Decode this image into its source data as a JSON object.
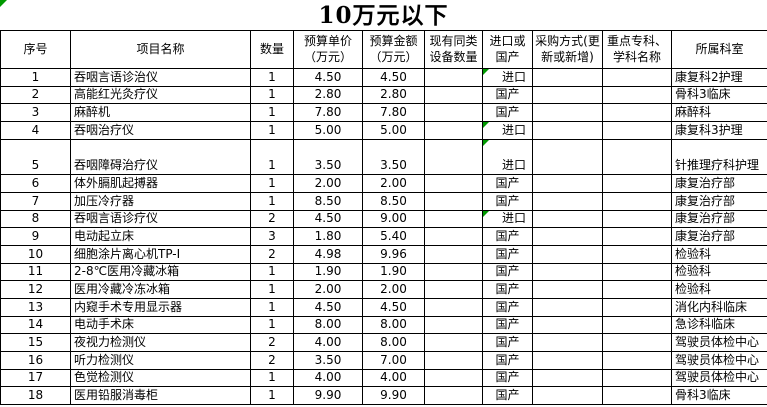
{
  "title": "10万元以下",
  "colors": {
    "grid": "#000000",
    "error_indicator": "#009900",
    "text": "#000000",
    "background": "#ffffff"
  },
  "sheet_corner_error_indicator": true,
  "table": {
    "columns": [
      {
        "key": "index",
        "label": "序号"
      },
      {
        "key": "name",
        "label": "项目名称"
      },
      {
        "key": "qty",
        "label": "数量"
      },
      {
        "key": "unit_price",
        "label": "预算单价\n（万元）"
      },
      {
        "key": "amount",
        "label": "预算金额\n（万元）"
      },
      {
        "key": "existing_count",
        "label": "现有同类\n设备数量"
      },
      {
        "key": "origin",
        "label": "进口或\n国产"
      },
      {
        "key": "method",
        "label": "采购方式(更\n新或新增)"
      },
      {
        "key": "specialty",
        "label": "重点专科、\n学科名称"
      },
      {
        "key": "dept",
        "label": "所属科室"
      }
    ],
    "rows": [
      {
        "index": "1",
        "name": "吞咽言语诊治仪",
        "qty": "1",
        "unit_price": "4.50",
        "amount": "4.50",
        "existing_count": "",
        "origin": "进口",
        "origin_flag": true,
        "method": "",
        "specialty": "",
        "dept": "康复科2护理"
      },
      {
        "index": "2",
        "name": "高能红光灸疗仪",
        "qty": "1",
        "unit_price": "2.80",
        "amount": "2.80",
        "existing_count": "",
        "origin": "国产",
        "origin_flag": false,
        "method": "",
        "specialty": "",
        "dept": "骨科3临床"
      },
      {
        "index": "3",
        "name": "麻醉机",
        "qty": "1",
        "unit_price": "7.80",
        "amount": "7.80",
        "existing_count": "",
        "origin": "国产",
        "origin_flag": false,
        "method": "",
        "specialty": "",
        "dept": "麻醉科"
      },
      {
        "index": "4",
        "name": "吞咽治疗仪",
        "qty": "1",
        "unit_price": "5.00",
        "amount": "5.00",
        "existing_count": "",
        "origin": "进口",
        "origin_flag": true,
        "method": "",
        "specialty": "",
        "dept": "康复科3护理"
      },
      {
        "index": "5",
        "name": "吞咽障碍治疗仪",
        "qty": "1",
        "unit_price": "3.50",
        "amount": "3.50",
        "existing_count": "",
        "origin": "进口",
        "origin_flag": true,
        "method": "",
        "specialty": "",
        "dept": "针推理疗科护理",
        "tall": true
      },
      {
        "index": "6",
        "name": "体外膈肌起搏器",
        "qty": "1",
        "unit_price": "2.00",
        "amount": "2.00",
        "existing_count": "",
        "origin": "国产",
        "origin_flag": false,
        "method": "",
        "specialty": "",
        "dept": "康复治疗部"
      },
      {
        "index": "7",
        "name": "加压冷疗器",
        "qty": "1",
        "unit_price": "8.50",
        "amount": "8.50",
        "existing_count": "",
        "origin": "国产",
        "origin_flag": false,
        "method": "",
        "specialty": "",
        "dept": "康复治疗部"
      },
      {
        "index": "8",
        "name": "吞咽言语诊疗仪",
        "qty": "2",
        "unit_price": "4.50",
        "amount": "9.00",
        "existing_count": "",
        "origin": "进口",
        "origin_flag": true,
        "method": "",
        "specialty": "",
        "dept": "康复治疗部"
      },
      {
        "index": "9",
        "name": "电动起立床",
        "qty": "3",
        "unit_price": "1.80",
        "amount": "5.40",
        "existing_count": "",
        "origin": "国产",
        "origin_flag": false,
        "method": "",
        "specialty": "",
        "dept": "康复治疗部"
      },
      {
        "index": "10",
        "name": "细胞涂片离心机TP-I",
        "qty": "2",
        "unit_price": "4.98",
        "amount": "9.96",
        "existing_count": "",
        "origin": "国产",
        "origin_flag": false,
        "method": "",
        "specialty": "",
        "dept": "检验科"
      },
      {
        "index": "11",
        "name": "2-8℃医用冷藏冰箱",
        "qty": "1",
        "unit_price": "1.90",
        "amount": "1.90",
        "existing_count": "",
        "origin": "国产",
        "origin_flag": false,
        "method": "",
        "specialty": "",
        "dept": "检验科"
      },
      {
        "index": "12",
        "name": "医用冷藏冷冻冰箱",
        "qty": "1",
        "unit_price": "2.00",
        "amount": "2.00",
        "existing_count": "",
        "origin": "国产",
        "origin_flag": false,
        "method": "",
        "specialty": "",
        "dept": "检验科"
      },
      {
        "index": "13",
        "name": "内窥手术专用显示器",
        "qty": "1",
        "unit_price": "4.50",
        "amount": "4.50",
        "existing_count": "",
        "origin": "国产",
        "origin_flag": false,
        "method": "",
        "specialty": "",
        "dept": "消化内科临床"
      },
      {
        "index": "14",
        "name": "电动手术床",
        "qty": "1",
        "unit_price": "8.00",
        "amount": "8.00",
        "existing_count": "",
        "origin": "国产",
        "origin_flag": false,
        "method": "",
        "specialty": "",
        "dept": "急诊科临床"
      },
      {
        "index": "15",
        "name": "夜视力检测仪",
        "qty": "2",
        "unit_price": "4.00",
        "amount": "8.00",
        "existing_count": "",
        "origin": "国产",
        "origin_flag": false,
        "method": "",
        "specialty": "",
        "dept": "驾驶员体检中心"
      },
      {
        "index": "16",
        "name": "听力检测仪",
        "qty": "2",
        "unit_price": "3.50",
        "amount": "7.00",
        "existing_count": "",
        "origin": "国产",
        "origin_flag": false,
        "method": "",
        "specialty": "",
        "dept": "驾驶员体检中心"
      },
      {
        "index": "17",
        "name": "色觉检测仪",
        "qty": "1",
        "unit_price": "4.00",
        "amount": "4.00",
        "existing_count": "",
        "origin": "国产",
        "origin_flag": false,
        "method": "",
        "specialty": "",
        "dept": "驾驶员体检中心"
      },
      {
        "index": "18",
        "name": "医用铅服消毒柜",
        "qty": "1",
        "unit_price": "9.90",
        "amount": "9.90",
        "existing_count": "",
        "origin": "国产",
        "origin_flag": false,
        "method": "",
        "specialty": "",
        "dept": "骨科3临床"
      }
    ]
  }
}
